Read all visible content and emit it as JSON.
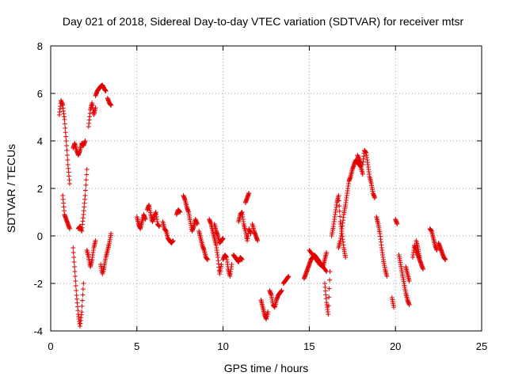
{
  "chart_data": {
    "type": "scatter",
    "title": "Day 021 of 2018, Sidereal Day-to-day VTEC variation (SDTVAR) for receiver mtsr",
    "xlabel": "GPS time / hours",
    "ylabel": "SDTVAR / TECUs",
    "xlim": [
      0,
      25
    ],
    "ylim": [
      -4,
      8
    ],
    "xticks": [
      "0",
      "5",
      "10",
      "15",
      "20",
      "25"
    ],
    "yticks": [
      "-4",
      "-2",
      "0",
      "2",
      "4",
      "6",
      "8"
    ],
    "grid": true,
    "marker": "+",
    "color": "#e00000",
    "track_segments": [
      [
        [
          0.5,
          5.1
        ],
        [
          0.6,
          5.7
        ],
        [
          0.7,
          5.5
        ],
        [
          0.8,
          4.9
        ],
        [
          0.9,
          4.0
        ],
        [
          1.0,
          3.0
        ],
        [
          1.1,
          2.2
        ]
      ],
      [
        [
          0.7,
          1.7
        ],
        [
          0.8,
          0.9
        ],
        [
          0.9,
          0.7
        ],
        [
          1.0,
          0.5
        ],
        [
          1.1,
          0.3
        ]
      ],
      [
        [
          1.3,
          -0.5
        ],
        [
          1.4,
          -1.5
        ],
        [
          1.5,
          -2.5
        ],
        [
          1.6,
          -3.3
        ],
        [
          1.7,
          -3.8
        ],
        [
          1.8,
          -3.2
        ],
        [
          1.9,
          -2.0
        ]
      ],
      [
        [
          1.3,
          3.7
        ],
        [
          1.4,
          3.9
        ],
        [
          1.5,
          3.6
        ],
        [
          1.6,
          3.4
        ],
        [
          1.7,
          3.6
        ],
        [
          1.8,
          3.9
        ],
        [
          1.9,
          3.8
        ],
        [
          2.0,
          4.0
        ]
      ],
      [
        [
          1.6,
          0.3
        ],
        [
          1.7,
          0.4
        ],
        [
          1.8,
          0.2
        ],
        [
          1.9,
          0.9
        ],
        [
          2.0,
          1.7
        ],
        [
          2.1,
          2.8
        ]
      ],
      [
        [
          2.1,
          -0.6
        ],
        [
          2.2,
          -0.9
        ],
        [
          2.3,
          -1.3
        ],
        [
          2.4,
          -1.0
        ],
        [
          2.5,
          -0.5
        ],
        [
          2.6,
          -0.2
        ]
      ],
      [
        [
          2.2,
          4.6
        ],
        [
          2.3,
          5.3
        ],
        [
          2.4,
          5.6
        ],
        [
          2.5,
          5.1
        ],
        [
          2.6,
          5.4
        ]
      ],
      [
        [
          2.6,
          5.9
        ],
        [
          2.7,
          6.1
        ],
        [
          2.8,
          6.2
        ],
        [
          2.9,
          6.3
        ],
        [
          3.0,
          6.35
        ],
        [
          3.1,
          6.2
        ],
        [
          3.2,
          6.1
        ]
      ],
      [
        [
          3.3,
          5.8
        ],
        [
          3.4,
          5.6
        ],
        [
          3.5,
          5.5
        ]
      ],
      [
        [
          2.9,
          -1.2
        ],
        [
          3.0,
          -1.6
        ],
        [
          3.1,
          -1.3
        ],
        [
          3.2,
          -0.9
        ],
        [
          3.3,
          -0.6
        ],
        [
          3.4,
          -0.3
        ],
        [
          3.5,
          0.1
        ]
      ],
      [
        [
          5.0,
          0.8
        ],
        [
          5.1,
          0.5
        ],
        [
          5.2,
          0.3
        ],
        [
          5.3,
          0.6
        ],
        [
          5.4,
          0.9
        ],
        [
          5.5,
          0.7
        ]
      ],
      [
        [
          5.6,
          1.1
        ],
        [
          5.7,
          1.3
        ],
        [
          5.8,
          0.9
        ],
        [
          5.9,
          0.6
        ],
        [
          6.0,
          0.8
        ],
        [
          6.1,
          1.0
        ],
        [
          6.2,
          0.5
        ],
        [
          6.3,
          0.4
        ]
      ],
      [
        [
          6.5,
          0.6
        ],
        [
          6.6,
          0.3
        ],
        [
          6.7,
          0.2
        ],
        [
          6.8,
          -0.1
        ],
        [
          6.9,
          -0.2
        ],
        [
          7.0,
          -0.3
        ],
        [
          7.1,
          -0.2
        ]
      ],
      [
        [
          7.3,
          0.9
        ],
        [
          7.4,
          1.1
        ],
        [
          7.5,
          1.0
        ]
      ],
      [
        [
          7.7,
          1.7
        ],
        [
          7.8,
          1.5
        ],
        [
          7.9,
          1.2
        ],
        [
          8.0,
          1.0
        ],
        [
          8.1,
          0.6
        ],
        [
          8.2,
          0.2
        ],
        [
          8.3,
          0.4
        ],
        [
          8.4,
          0.7
        ],
        [
          8.5,
          0.5
        ]
      ],
      [
        [
          8.6,
          0.2
        ],
        [
          8.7,
          -0.1
        ],
        [
          8.8,
          -0.4
        ],
        [
          8.9,
          -0.6
        ],
        [
          9.0,
          -0.9
        ],
        [
          9.1,
          -1.0
        ]
      ],
      [
        [
          9.2,
          0.7
        ],
        [
          9.3,
          0.5
        ],
        [
          9.4,
          0.2
        ],
        [
          9.5,
          -0.1
        ],
        [
          9.6,
          -0.4
        ],
        [
          9.7,
          -0.9
        ],
        [
          9.8,
          -1.6
        ],
        [
          9.9,
          -1.2
        ]
      ],
      [
        [
          9.5,
          0.5
        ],
        [
          9.6,
          0.2
        ],
        [
          9.7,
          0.0
        ],
        [
          9.8,
          -0.3
        ],
        [
          9.9,
          -0.2
        ],
        [
          10.0,
          -0.1
        ]
      ],
      [
        [
          10.0,
          -1.0
        ],
        [
          10.1,
          -0.8
        ],
        [
          10.2,
          -0.9
        ],
        [
          10.3,
          -1.4
        ],
        [
          10.4,
          -1.7
        ],
        [
          10.5,
          -1.2
        ]
      ],
      [
        [
          10.6,
          -0.8
        ],
        [
          10.7,
          -0.9
        ],
        [
          10.8,
          -1.0
        ],
        [
          10.9,
          -1.1
        ],
        [
          11.0,
          -0.9
        ],
        [
          11.1,
          -1.0
        ]
      ],
      [
        [
          10.9,
          0.6
        ],
        [
          11.0,
          0.9
        ],
        [
          11.1,
          1.0
        ],
        [
          11.2,
          0.5
        ],
        [
          11.3,
          0.2
        ],
        [
          11.4,
          -0.2
        ],
        [
          11.5,
          0.3
        ],
        [
          11.6,
          0.1
        ]
      ],
      [
        [
          11.3,
          1.4
        ],
        [
          11.4,
          1.6
        ],
        [
          11.5,
          1.8
        ]
      ],
      [
        [
          11.7,
          0.5
        ],
        [
          11.8,
          0.2
        ],
        [
          11.9,
          0.0
        ],
        [
          12.0,
          -0.2
        ]
      ],
      [
        [
          12.2,
          -2.7
        ],
        [
          12.3,
          -3.0
        ],
        [
          12.4,
          -3.3
        ],
        [
          12.5,
          -3.5
        ],
        [
          12.6,
          -3.2
        ]
      ],
      [
        [
          12.7,
          -2.3
        ],
        [
          12.8,
          -2.5
        ],
        [
          12.9,
          -2.9
        ],
        [
          13.0,
          -3.0
        ],
        [
          13.1,
          -2.7
        ],
        [
          13.2,
          -2.5
        ],
        [
          13.3,
          -2.4
        ],
        [
          13.4,
          -2.3
        ]
      ],
      [
        [
          13.5,
          -2.0
        ],
        [
          13.6,
          -1.9
        ],
        [
          13.7,
          -1.8
        ],
        [
          13.8,
          -1.7
        ]
      ],
      [
        [
          14.7,
          -1.8
        ],
        [
          14.8,
          -1.6
        ],
        [
          14.9,
          -1.4
        ],
        [
          15.0,
          -1.2
        ],
        [
          15.1,
          -1.0
        ],
        [
          15.2,
          -0.9
        ],
        [
          15.3,
          -0.8
        ],
        [
          15.4,
          -0.9
        ],
        [
          15.5,
          -1.0
        ],
        [
          15.6,
          -1.1
        ],
        [
          15.7,
          -1.2
        ],
        [
          15.8,
          -1.3
        ],
        [
          15.9,
          -1.0
        ],
        [
          16.0,
          -0.7
        ]
      ],
      [
        [
          15.0,
          -0.6
        ],
        [
          15.2,
          -0.8
        ],
        [
          15.4,
          -1.0
        ],
        [
          15.6,
          -1.2
        ],
        [
          15.8,
          -1.3
        ],
        [
          16.0,
          -1.5
        ]
      ],
      [
        [
          15.9,
          -2.0
        ],
        [
          16.0,
          -2.8
        ],
        [
          16.1,
          -3.3
        ],
        [
          16.2,
          -1.5
        ]
      ],
      [
        [
          16.3,
          0.0
        ],
        [
          16.4,
          0.4
        ],
        [
          16.5,
          0.9
        ],
        [
          16.6,
          1.4
        ],
        [
          16.7,
          1.7
        ],
        [
          16.8,
          0.6
        ],
        [
          16.9,
          0.1
        ],
        [
          17.0,
          -0.5
        ],
        [
          17.1,
          -0.9
        ]
      ],
      [
        [
          16.7,
          -0.5
        ],
        [
          16.8,
          -0.2
        ],
        [
          16.9,
          0.3
        ],
        [
          17.0,
          0.9
        ],
        [
          17.1,
          1.3
        ],
        [
          17.2,
          1.8
        ],
        [
          17.3,
          2.3
        ],
        [
          17.4,
          2.5
        ],
        [
          17.5,
          2.8
        ],
        [
          17.6,
          3.0
        ],
        [
          17.7,
          3.2
        ],
        [
          17.8,
          3.1
        ],
        [
          17.9,
          3.0
        ],
        [
          18.0,
          2.9
        ],
        [
          18.1,
          2.6
        ]
      ],
      [
        [
          17.8,
          3.4
        ],
        [
          17.9,
          3.2
        ],
        [
          18.0,
          3.0
        ]
      ],
      [
        [
          18.1,
          3.0
        ],
        [
          18.2,
          3.6
        ],
        [
          18.3,
          3.5
        ],
        [
          18.4,
          3.0
        ],
        [
          18.5,
          2.5
        ],
        [
          18.6,
          2.2
        ],
        [
          18.7,
          1.8
        ],
        [
          18.8,
          1.6
        ]
      ],
      [
        [
          18.9,
          0.8
        ],
        [
          19.0,
          0.5
        ],
        [
          19.1,
          0.1
        ],
        [
          19.2,
          -0.5
        ],
        [
          19.3,
          -1.0
        ],
        [
          19.4,
          -1.4
        ],
        [
          19.5,
          -1.7
        ]
      ],
      [
        [
          19.8,
          -2.6
        ],
        [
          19.9,
          -3.0
        ]
      ],
      [
        [
          20.0,
          0.7
        ],
        [
          20.1,
          0.5
        ]
      ],
      [
        [
          20.2,
          -0.8
        ],
        [
          20.3,
          -1.2
        ],
        [
          20.4,
          -1.6
        ],
        [
          20.5,
          -2.0
        ],
        [
          20.6,
          -2.4
        ],
        [
          20.7,
          -2.7
        ],
        [
          20.8,
          -2.9
        ]
      ],
      [
        [
          20.6,
          -1.3
        ],
        [
          20.7,
          -1.6
        ],
        [
          20.8,
          -1.9
        ]
      ],
      [
        [
          21.0,
          -0.9
        ],
        [
          21.1,
          -0.4
        ],
        [
          21.2,
          -0.6
        ],
        [
          21.3,
          -0.8
        ],
        [
          21.4,
          -1.0
        ],
        [
          21.5,
          -1.2
        ],
        [
          21.6,
          -1.4
        ]
      ],
      [
        [
          21.2,
          -0.2
        ],
        [
          21.3,
          -0.5
        ],
        [
          21.4,
          -0.9
        ]
      ],
      [
        [
          22.0,
          0.3
        ],
        [
          22.1,
          0.2
        ],
        [
          22.2,
          -0.1
        ],
        [
          22.3,
          -0.4
        ],
        [
          22.4,
          -0.6
        ]
      ],
      [
        [
          22.5,
          -0.3
        ],
        [
          22.6,
          -0.5
        ],
        [
          22.7,
          -0.7
        ],
        [
          22.8,
          -0.9
        ],
        [
          22.9,
          -1.0
        ]
      ]
    ]
  }
}
